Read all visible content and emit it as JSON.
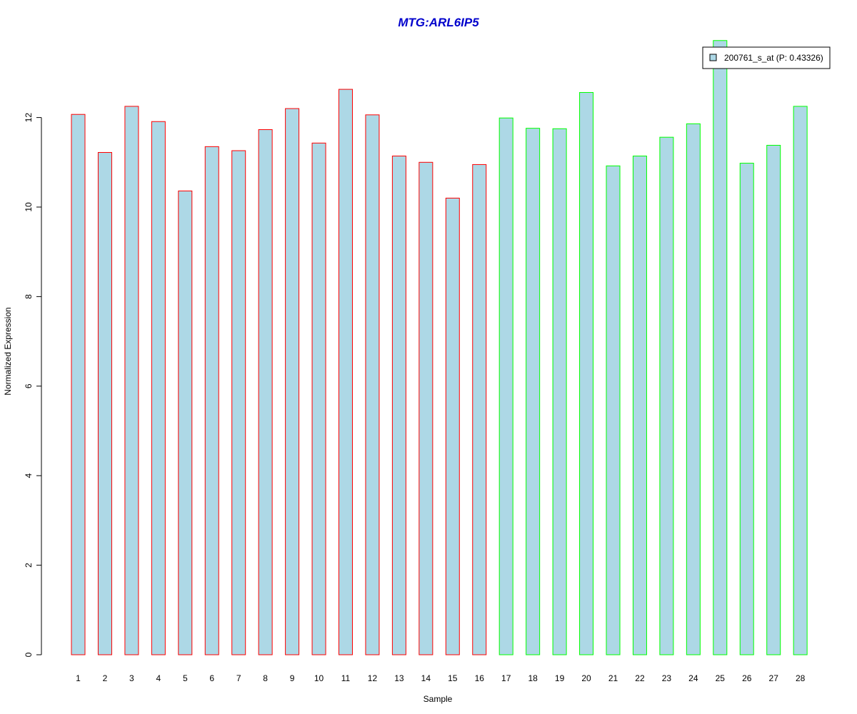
{
  "chart_data": {
    "type": "bar",
    "title": "MTG:ARL6IP5",
    "xlabel": "Sample",
    "ylabel": "Normalized Expression",
    "categories": [
      "1",
      "2",
      "3",
      "4",
      "5",
      "6",
      "7",
      "8",
      "9",
      "10",
      "11",
      "12",
      "13",
      "14",
      "15",
      "16",
      "17",
      "18",
      "19",
      "20",
      "21",
      "22",
      "23",
      "24",
      "25",
      "26",
      "27",
      "28"
    ],
    "series": [
      {
        "name": "200761_s_at (P: 0.43326)",
        "values": [
          12.07,
          11.22,
          12.25,
          11.91,
          10.36,
          11.35,
          11.26,
          11.73,
          12.2,
          11.43,
          12.63,
          12.06,
          11.14,
          11.0,
          10.2,
          10.95,
          11.99,
          11.76,
          11.75,
          12.56,
          10.92,
          11.14,
          11.56,
          11.86,
          13.72,
          10.98,
          11.38,
          12.25
        ],
        "fill_color": "#add8e6",
        "border_colors": [
          "#ff0000",
          "#ff0000",
          "#ff0000",
          "#ff0000",
          "#ff0000",
          "#ff0000",
          "#ff0000",
          "#ff0000",
          "#ff0000",
          "#ff0000",
          "#ff0000",
          "#ff0000",
          "#ff0000",
          "#ff0000",
          "#ff0000",
          "#ff0000",
          "#00ff00",
          "#00ff00",
          "#00ff00",
          "#00ff00",
          "#00ff00",
          "#00ff00",
          "#00ff00",
          "#00ff00",
          "#00ff00",
          "#00ff00",
          "#00ff00",
          "#00ff00"
        ]
      }
    ],
    "ylim": [
      0,
      13.72
    ],
    "yticks": [
      0,
      2,
      4,
      6,
      8,
      10,
      12
    ],
    "grid": false,
    "legend_position": "top-right",
    "title_color": "#0000cc"
  }
}
